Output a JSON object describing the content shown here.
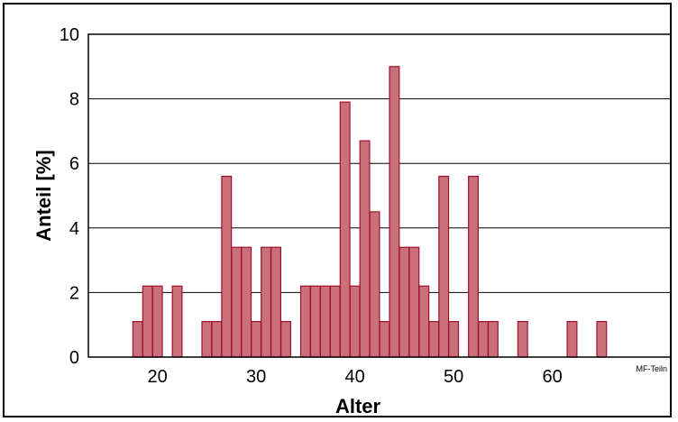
{
  "chart_data": {
    "type": "bar",
    "xlabel": "Alter",
    "ylabel": "Anteil [%]",
    "xlim": [
      13,
      72
    ],
    "ylim": [
      0,
      10
    ],
    "xticks": [
      20,
      30,
      40,
      50,
      60
    ],
    "yticks": [
      0,
      2,
      4,
      6,
      8,
      10
    ],
    "grid": true,
    "bar_color": "#c9707a",
    "bar_edge_color": "#a0102a",
    "bins": [
      {
        "x": 18,
        "value": 1.1
      },
      {
        "x": 19,
        "value": 2.2
      },
      {
        "x": 20,
        "value": 2.2
      },
      {
        "x": 22,
        "value": 2.2
      },
      {
        "x": 25,
        "value": 1.1
      },
      {
        "x": 26,
        "value": 1.1
      },
      {
        "x": 27,
        "value": 5.6
      },
      {
        "x": 28,
        "value": 3.4
      },
      {
        "x": 29,
        "value": 3.4
      },
      {
        "x": 30,
        "value": 1.1
      },
      {
        "x": 31,
        "value": 3.4
      },
      {
        "x": 32,
        "value": 3.4
      },
      {
        "x": 33,
        "value": 1.1
      },
      {
        "x": 35,
        "value": 2.2
      },
      {
        "x": 36,
        "value": 2.2
      },
      {
        "x": 37,
        "value": 2.2
      },
      {
        "x": 38,
        "value": 2.2
      },
      {
        "x": 39,
        "value": 7.9
      },
      {
        "x": 40,
        "value": 2.2
      },
      {
        "x": 41,
        "value": 6.7
      },
      {
        "x": 42,
        "value": 4.5
      },
      {
        "x": 43,
        "value": 1.1
      },
      {
        "x": 44,
        "value": 9.0
      },
      {
        "x": 45,
        "value": 3.4
      },
      {
        "x": 46,
        "value": 3.4
      },
      {
        "x": 47,
        "value": 2.2
      },
      {
        "x": 48,
        "value": 1.1
      },
      {
        "x": 49,
        "value": 5.6
      },
      {
        "x": 50,
        "value": 1.1
      },
      {
        "x": 52,
        "value": 5.6
      },
      {
        "x": 53,
        "value": 1.1
      },
      {
        "x": 54,
        "value": 1.1
      },
      {
        "x": 57,
        "value": 1.1
      },
      {
        "x": 62,
        "value": 1.1
      },
      {
        "x": 65,
        "value": 1.1
      }
    ],
    "annotation": "MF-Teiln"
  }
}
